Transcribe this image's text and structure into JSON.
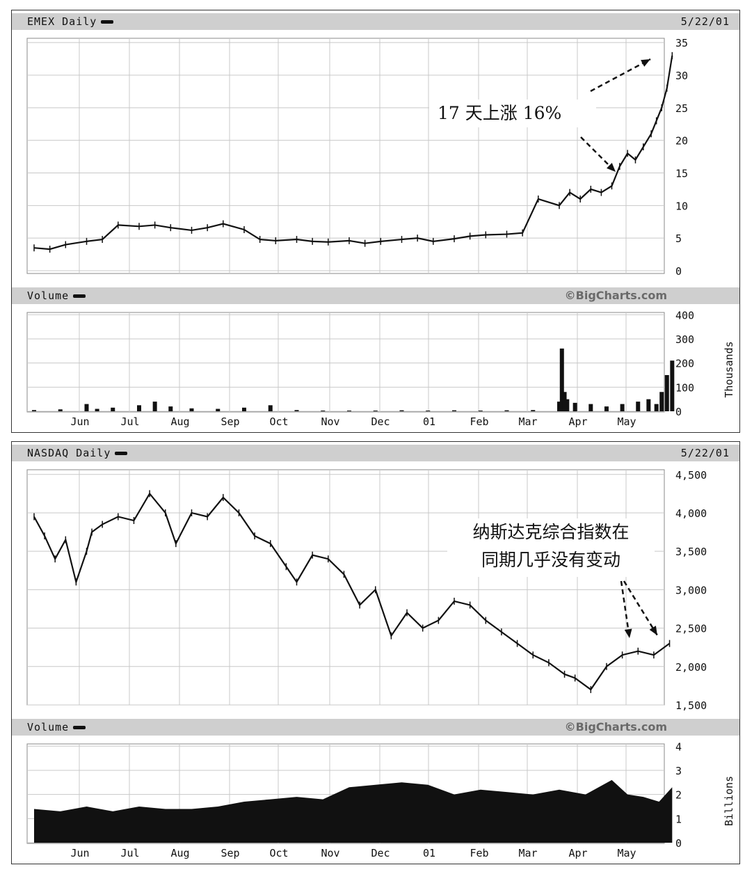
{
  "chart1": {
    "title": "EMEX Daily",
    "date": "5/22/01",
    "volume_label": "Volume",
    "watermark": "©BigCharts.com",
    "volume_unit": "Thousands",
    "annotation": "17 天上涨 16%"
  },
  "chart2": {
    "title": "NASDAQ Daily",
    "date": "5/22/01",
    "volume_label": "Volume",
    "watermark": "©BigCharts.com",
    "volume_unit": "Billions",
    "annotation_line1": "纳斯达克综合指数在",
    "annotation_line2": "同期几乎没有变动"
  },
  "colors": {
    "header": "#cfcfcf",
    "grid": "#c8c8c8",
    "ink": "#111111"
  },
  "chart_data": [
    {
      "type": "line",
      "title": "EMEX Daily",
      "x_tick_labels": [
        "Jun",
        "Jul",
        "Aug",
        "Sep",
        "Oct",
        "Nov",
        "Dec",
        "01",
        "Feb",
        "Mar",
        "Apr",
        "May"
      ],
      "y_tick_labels": [
        "0",
        "5",
        "10",
        "15",
        "20",
        "25",
        "30",
        "35"
      ],
      "ylim": [
        0,
        35
      ],
      "series": [
        {
          "x": [
            0,
            0.3,
            0.6,
            1,
            1.3,
            1.6,
            2,
            2.3,
            2.6,
            3,
            3.3,
            3.6,
            4,
            4.3,
            4.6,
            5,
            5.3,
            5.6,
            6,
            6.3,
            6.6,
            7,
            7.3,
            7.6,
            8,
            8.3,
            8.6,
            9,
            9.3,
            9.6,
            10,
            10.2,
            10.4,
            10.6,
            10.8,
            11,
            11.15,
            11.3,
            11.45,
            11.6,
            11.75,
            11.85,
            11.95,
            12.05,
            12.15
          ],
          "values": [
            3.5,
            3.3,
            4,
            4.5,
            4.8,
            7,
            6.8,
            7,
            6.6,
            6.2,
            6.6,
            7.2,
            6.3,
            4.8,
            4.6,
            4.8,
            4.5,
            4.4,
            4.6,
            4.2,
            4.5,
            4.8,
            5,
            4.5,
            4.9,
            5.3,
            5.5,
            5.6,
            5.8,
            11,
            10,
            12,
            11,
            12.5,
            12,
            13,
            16,
            18,
            17,
            19,
            21,
            23,
            25,
            28,
            33
          ]
        }
      ],
      "grid": true
    },
    {
      "type": "bar",
      "title": "Volume",
      "x_tick_labels": [
        "Jun",
        "Jul",
        "Aug",
        "Sep",
        "Oct",
        "Nov",
        "Dec",
        "01",
        "Feb",
        "Mar",
        "Apr",
        "May"
      ],
      "y_tick_labels": [
        "0",
        "100",
        "200",
        "300",
        "400"
      ],
      "ylim": [
        0,
        400
      ],
      "unit": "Thousands",
      "series": [
        {
          "x": [
            0,
            0.5,
            1,
            1.2,
            1.5,
            2,
            2.3,
            2.6,
            3,
            3.5,
            4,
            4.5,
            5,
            5.5,
            6,
            6.5,
            7,
            7.5,
            8,
            8.5,
            9,
            9.5,
            10,
            10.05,
            10.1,
            10.15,
            10.3,
            10.6,
            10.9,
            11.2,
            11.5,
            11.7,
            11.85,
            11.95,
            12.05,
            12.15
          ],
          "values": [
            5,
            8,
            30,
            10,
            15,
            25,
            40,
            20,
            12,
            10,
            15,
            25,
            5,
            3,
            3,
            3,
            4,
            3,
            4,
            3,
            4,
            5,
            40,
            260,
            80,
            50,
            35,
            30,
            20,
            30,
            40,
            50,
            30,
            80,
            150,
            210
          ]
        }
      ],
      "grid": true
    },
    {
      "type": "line",
      "title": "NASDAQ Daily",
      "x_tick_labels": [
        "Jun",
        "Jul",
        "Aug",
        "Sep",
        "Oct",
        "Nov",
        "Dec",
        "01",
        "Feb",
        "Mar",
        "Apr",
        "May"
      ],
      "y_tick_labels": [
        "1,500",
        "2,000",
        "2,500",
        "3,000",
        "3,500",
        "4,000",
        "4,500"
      ],
      "ylim": [
        1500,
        4500
      ],
      "series": [
        {
          "x": [
            0,
            0.2,
            0.4,
            0.6,
            0.8,
            1,
            1.1,
            1.3,
            1.6,
            1.9,
            2.2,
            2.5,
            2.7,
            3,
            3.3,
            3.6,
            3.9,
            4.2,
            4.5,
            4.8,
            5,
            5.3,
            5.6,
            5.9,
            6.2,
            6.5,
            6.8,
            7.1,
            7.4,
            7.7,
            8,
            8.3,
            8.6,
            8.9,
            9.2,
            9.5,
            9.8,
            10.1,
            10.3,
            10.6,
            10.9,
            11.2,
            11.5,
            11.8,
            12.1
          ],
          "values": [
            3950,
            3700,
            3400,
            3650,
            3100,
            3500,
            3750,
            3850,
            3950,
            3900,
            4250,
            4000,
            3600,
            4000,
            3950,
            4200,
            4000,
            3700,
            3600,
            3300,
            3100,
            3450,
            3400,
            3200,
            2800,
            3000,
            2400,
            2700,
            2500,
            2600,
            2850,
            2800,
            2600,
            2450,
            2300,
            2150,
            2050,
            1900,
            1850,
            1700,
            2000,
            2150,
            2200,
            2150,
            2300
          ]
        }
      ],
      "grid": true
    },
    {
      "type": "area",
      "title": "Volume",
      "x_tick_labels": [
        "Jun",
        "Jul",
        "Aug",
        "Sep",
        "Oct",
        "Nov",
        "Dec",
        "01",
        "Feb",
        "Mar",
        "Apr",
        "May"
      ],
      "y_tick_labels": [
        "0",
        "1",
        "2",
        "3",
        "4"
      ],
      "ylim": [
        0,
        4
      ],
      "unit": "Billions",
      "series": [
        {
          "x": [
            0,
            0.5,
            1,
            1.5,
            2,
            2.5,
            3,
            3.5,
            4,
            4.5,
            5,
            5.5,
            6,
            6.5,
            7,
            7.5,
            8,
            8.5,
            9,
            9.5,
            10,
            10.5,
            11,
            11.3,
            11.6,
            11.9,
            12.15
          ],
          "values": [
            1.4,
            1.3,
            1.5,
            1.3,
            1.5,
            1.4,
            1.4,
            1.5,
            1.7,
            1.8,
            1.9,
            1.8,
            2.3,
            2.4,
            2.5,
            2.4,
            2.0,
            2.2,
            2.1,
            2.0,
            2.2,
            2.0,
            2.6,
            2.0,
            1.9,
            1.7,
            2.3
          ]
        }
      ],
      "grid": true
    }
  ]
}
